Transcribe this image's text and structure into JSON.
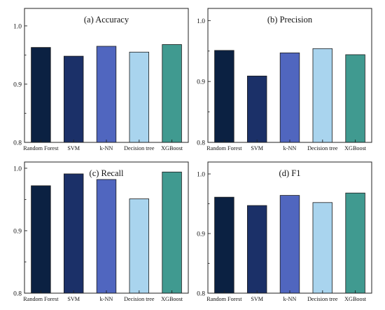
{
  "colors": {
    "bars": [
      "#0b2142",
      "#1b3068",
      "#5066bf",
      "#a9d4ee",
      "#409a90"
    ],
    "frame": "#222222"
  },
  "chart_data": [
    {
      "type": "bar",
      "title": "(a) Accuracy",
      "categories": [
        "Random Forest",
        "SVM",
        "k-NN",
        "Decision tree",
        "XGBoost"
      ],
      "values": [
        0.963,
        0.948,
        0.965,
        0.955,
        0.968
      ],
      "ylim": [
        0.8,
        1.03
      ],
      "yticks": [
        "0.8",
        "0.9",
        "1.0"
      ],
      "xlabel": "",
      "ylabel": "",
      "grid": false
    },
    {
      "type": "bar",
      "title": "(b) Precision",
      "categories": [
        "Random Forest",
        "SVM",
        "k-NN",
        "Decision tree",
        "XGBoost"
      ],
      "values": [
        0.951,
        0.909,
        0.947,
        0.954,
        0.944
      ],
      "ylim": [
        0.8,
        1.02
      ],
      "yticks": [
        "0.8",
        "0.9",
        "1.0"
      ],
      "xlabel": "",
      "ylabel": "",
      "grid": false
    },
    {
      "type": "bar",
      "title": "(c) Recall",
      "categories": [
        "Random Forest",
        "SVM",
        "k-NN",
        "Decision tree",
        "XGBoost"
      ],
      "values": [
        0.972,
        0.991,
        0.982,
        0.951,
        0.994
      ],
      "ylim": [
        0.8,
        1.01
      ],
      "yticks": [
        "0.8",
        "0.9",
        "1.0"
      ],
      "xlabel": "",
      "ylabel": "",
      "grid": false
    },
    {
      "type": "bar",
      "title": "(d) F1",
      "categories": [
        "Random Forest",
        "SVM",
        "k-NN",
        "Decision tree",
        "XGBoost"
      ],
      "values": [
        0.961,
        0.947,
        0.964,
        0.952,
        0.968
      ],
      "ylim": [
        0.8,
        1.02
      ],
      "yticks": [
        "0.8",
        "0.9",
        "1.0"
      ],
      "xlabel": "",
      "ylabel": "",
      "grid": false
    }
  ]
}
